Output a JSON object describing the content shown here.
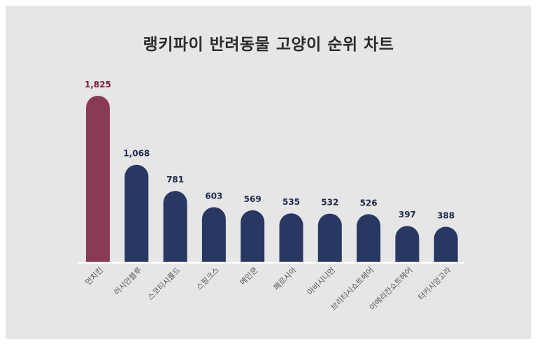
{
  "chart_data": {
    "type": "bar",
    "title": "랭키파이 반려동물 고양이 순위 차트",
    "categories": [
      "먼치킨",
      "러시안블루",
      "스코티시폴드",
      "스핑크스",
      "메인쿤",
      "페르시아",
      "아비시니안",
      "브리티시쇼트헤어",
      "아메리칸쇼트헤어",
      "터키시앙고라"
    ],
    "values": [
      1825,
      1068,
      781,
      603,
      569,
      535,
      532,
      526,
      397,
      388
    ],
    "value_labels": [
      "1,825",
      "1,068",
      "781",
      "603",
      "569",
      "535",
      "532",
      "526",
      "397",
      "388"
    ],
    "highlight_index": 0,
    "colors": {
      "highlight": "#8b3a56",
      "highlight_label": "#7a2140",
      "bar": "#283863",
      "label": "#1f2a4d",
      "axis": "#ffffff",
      "tick_label": "#555555"
    },
    "grid": false,
    "legend": "none"
  }
}
